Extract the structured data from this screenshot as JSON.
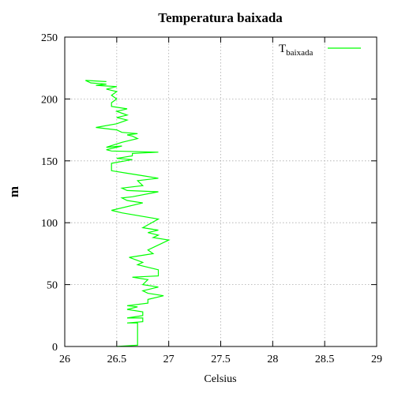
{
  "chart_data": {
    "type": "line",
    "title": "Temperatura baixada",
    "xlabel": "Celsius",
    "ylabel": "m",
    "xlim": [
      26,
      29
    ],
    "ylim": [
      0,
      250
    ],
    "grid": true,
    "legend_position": "top-right",
    "x_ticks": [
      "26",
      "26.5",
      "27",
      "27.5",
      "28",
      "28.5",
      "29"
    ],
    "y_ticks": [
      "0",
      "50",
      "100",
      "150",
      "200",
      "250"
    ],
    "series": [
      {
        "name": "T",
        "name_subscript": "baixada",
        "color": "#00ff00",
        "points": [
          [
            26.5,
            0
          ],
          [
            26.7,
            1
          ],
          [
            26.7,
            19
          ],
          [
            26.6,
            19
          ],
          [
            26.75,
            20
          ],
          [
            26.75,
            23
          ],
          [
            26.6,
            23
          ],
          [
            26.75,
            25
          ],
          [
            26.75,
            28
          ],
          [
            26.6,
            30
          ],
          [
            26.7,
            32
          ],
          [
            26.6,
            33
          ],
          [
            26.8,
            35
          ],
          [
            26.8,
            38
          ],
          [
            26.95,
            41
          ],
          [
            26.8,
            43
          ],
          [
            26.75,
            45
          ],
          [
            26.9,
            48
          ],
          [
            26.75,
            50
          ],
          [
            26.8,
            54
          ],
          [
            26.65,
            56
          ],
          [
            26.9,
            57
          ],
          [
            26.9,
            62
          ],
          [
            26.7,
            66
          ],
          [
            26.75,
            68
          ],
          [
            26.62,
            72
          ],
          [
            26.85,
            75
          ],
          [
            26.8,
            78
          ],
          [
            26.9,
            82
          ],
          [
            27.0,
            86
          ],
          [
            26.85,
            88
          ],
          [
            26.9,
            90
          ],
          [
            26.8,
            92
          ],
          [
            26.9,
            94
          ],
          [
            26.75,
            96
          ],
          [
            26.9,
            103
          ],
          [
            26.55,
            108
          ],
          [
            26.45,
            110
          ],
          [
            26.75,
            116
          ],
          [
            26.6,
            118
          ],
          [
            26.55,
            120
          ],
          [
            26.65,
            121
          ],
          [
            26.9,
            125
          ],
          [
            26.6,
            126
          ],
          [
            26.55,
            128
          ],
          [
            26.75,
            130
          ],
          [
            26.7,
            134
          ],
          [
            26.9,
            136
          ],
          [
            26.75,
            138
          ],
          [
            26.6,
            140
          ],
          [
            26.45,
            142
          ],
          [
            26.45,
            148
          ],
          [
            26.65,
            151
          ],
          [
            26.5,
            152
          ],
          [
            26.65,
            154
          ],
          [
            26.65,
            156
          ],
          [
            26.9,
            157
          ],
          [
            26.45,
            158
          ],
          [
            26.4,
            159
          ],
          [
            26.55,
            162
          ],
          [
            26.4,
            161
          ],
          [
            26.55,
            165
          ],
          [
            26.7,
            168
          ],
          [
            26.65,
            170
          ],
          [
            26.6,
            171
          ],
          [
            26.7,
            172
          ],
          [
            26.55,
            173
          ],
          [
            26.5,
            175
          ],
          [
            26.3,
            177
          ],
          [
            26.5,
            180
          ],
          [
            26.6,
            183
          ],
          [
            26.5,
            185
          ],
          [
            26.6,
            187
          ],
          [
            26.5,
            190
          ],
          [
            26.6,
            192
          ],
          [
            26.45,
            194
          ],
          [
            26.45,
            197
          ],
          [
            26.5,
            200
          ],
          [
            26.45,
            203
          ],
          [
            26.5,
            206
          ],
          [
            26.4,
            208
          ],
          [
            26.5,
            210
          ],
          [
            26.3,
            211
          ],
          [
            26.4,
            212
          ],
          [
            26.25,
            213
          ],
          [
            26.2,
            215
          ],
          [
            26.4,
            214
          ]
        ]
      }
    ]
  }
}
